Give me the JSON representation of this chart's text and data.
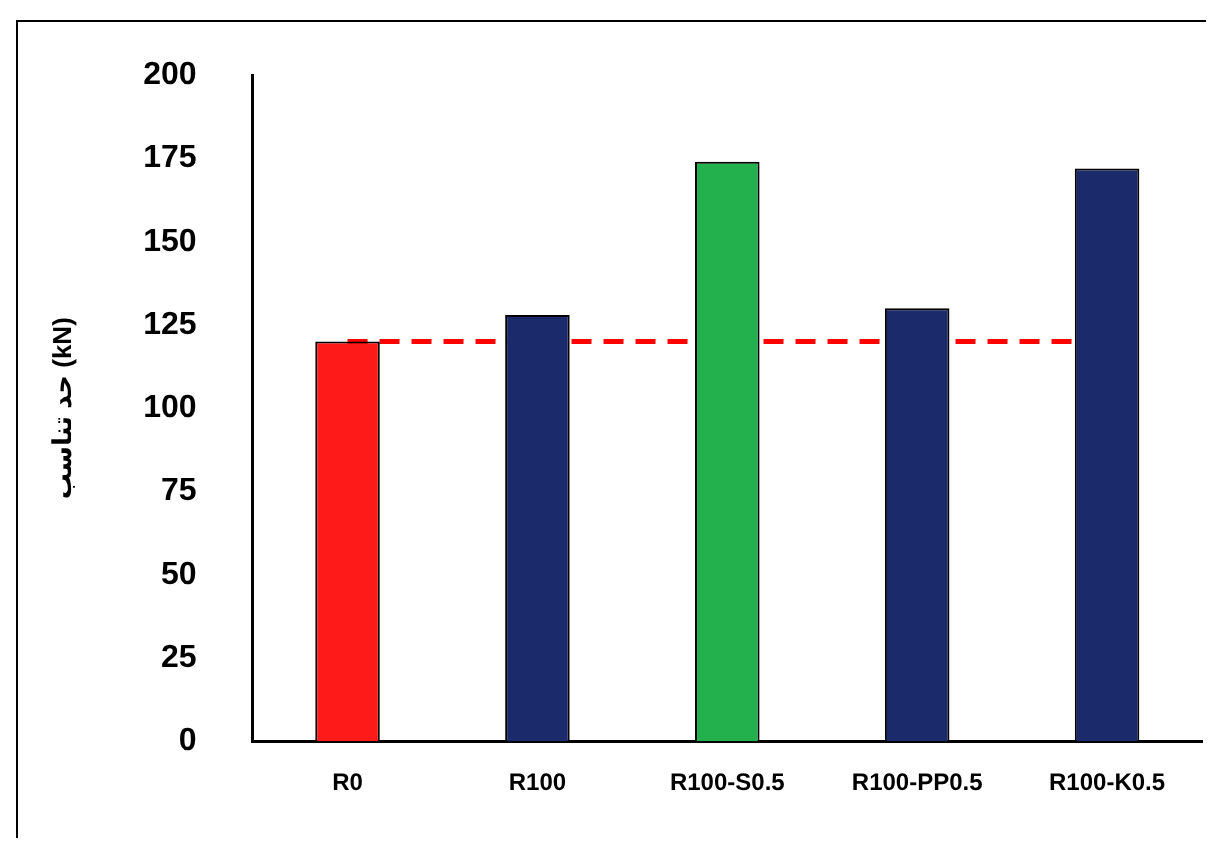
{
  "chart_data": {
    "type": "bar",
    "ylabel": "حد تناسب (kN)",
    "categories": [
      "R0",
      "R100",
      "R100-S0.5",
      "R100-PP0.5",
      "R100-K0.5"
    ],
    "values": [
      120,
      128,
      174,
      130,
      172
    ],
    "colors": [
      "#ff1a1a",
      "#1b2a6b",
      "#22b14c",
      "#1b2a6b",
      "#1b2a6b"
    ],
    "ylim": [
      0,
      200
    ],
    "yticks": [
      0,
      25,
      50,
      75,
      100,
      125,
      150,
      175,
      200
    ],
    "grid": false,
    "legend": false,
    "ref_lines": [
      {
        "axis": "y",
        "value": 120,
        "color": "#ff0000",
        "line_style": "dashed"
      }
    ]
  }
}
